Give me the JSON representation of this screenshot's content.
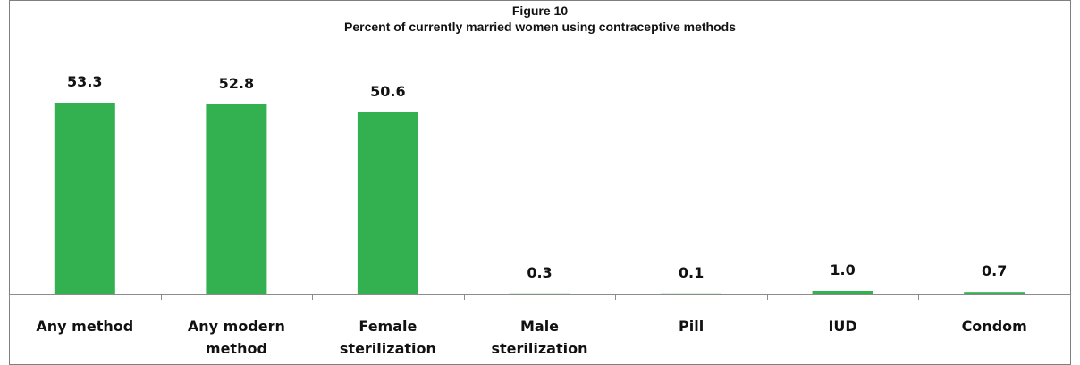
{
  "chart_data": {
    "type": "bar",
    "title": "Figure 10",
    "subtitle": "Percent of currently married women using contraceptive methods",
    "categories": [
      [
        "Any method"
      ],
      [
        "Any modern",
        "method"
      ],
      [
        "Female",
        "sterilization"
      ],
      [
        "Male",
        "sterilization"
      ],
      [
        "Pill"
      ],
      [
        "IUD"
      ],
      [
        "Condom"
      ]
    ],
    "values": [
      53.3,
      52.8,
      50.6,
      0.3,
      0.1,
      1.0,
      0.7
    ],
    "value_labels": [
      "53.3",
      "52.8",
      "50.6",
      "0.3",
      "0.1",
      "1.0",
      "0.7"
    ],
    "ylim": [
      0,
      60
    ],
    "bar_color": "#33b04f",
    "grid": false,
    "legend": "none",
    "xlabel": "",
    "ylabel": ""
  }
}
